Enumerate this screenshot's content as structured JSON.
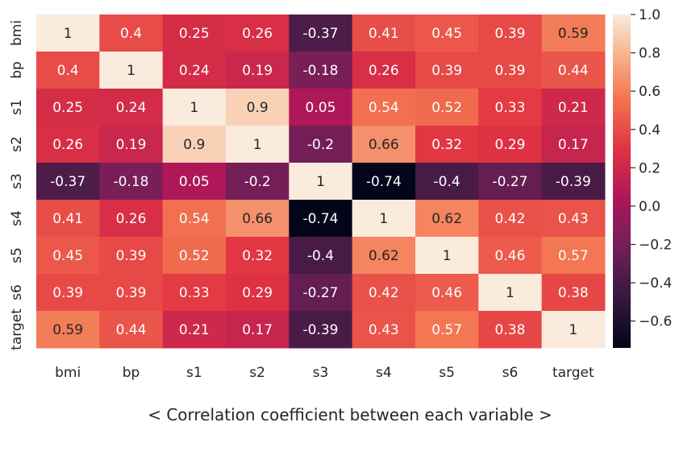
{
  "chart_data": {
    "type": "heatmap",
    "title": "",
    "xlabel": "",
    "ylabel": "",
    "rows": [
      "bmi",
      "bp",
      "s1",
      "s2",
      "s3",
      "s4",
      "s5",
      "s6",
      "target"
    ],
    "columns": [
      "bmi",
      "bp",
      "s1",
      "s2",
      "s3",
      "s4",
      "s5",
      "s6",
      "target"
    ],
    "values": [
      [
        1,
        0.4,
        0.25,
        0.26,
        -0.37,
        0.41,
        0.45,
        0.39,
        0.59
      ],
      [
        0.4,
        1,
        0.24,
        0.19,
        -0.18,
        0.26,
        0.39,
        0.39,
        0.44
      ],
      [
        0.25,
        0.24,
        1,
        0.9,
        0.05,
        0.54,
        0.52,
        0.33,
        0.21
      ],
      [
        0.26,
        0.19,
        0.9,
        1,
        -0.2,
        0.66,
        0.32,
        0.29,
        0.17
      ],
      [
        -0.37,
        -0.18,
        0.05,
        -0.2,
        1,
        -0.74,
        -0.4,
        -0.27,
        -0.39
      ],
      [
        0.41,
        0.26,
        0.54,
        0.66,
        -0.74,
        1,
        0.62,
        0.42,
        0.43
      ],
      [
        0.45,
        0.39,
        0.52,
        0.32,
        -0.4,
        0.62,
        1,
        0.46,
        0.57
      ],
      [
        0.39,
        0.39,
        0.33,
        0.29,
        -0.27,
        0.42,
        0.46,
        1,
        0.38
      ],
      [
        0.59,
        0.44,
        0.21,
        0.17,
        -0.39,
        0.43,
        0.57,
        0.38,
        1
      ]
    ],
    "colorbar": {
      "min": -0.74,
      "max": 1.0,
      "ticks": [
        1.0,
        0.8,
        0.6,
        0.4,
        0.2,
        0.0,
        -0.2,
        -0.4,
        -0.6
      ],
      "colormap": "rocket"
    },
    "annotations": true,
    "grid": false
  },
  "caption": "< Correlation coefficient between each variable >"
}
